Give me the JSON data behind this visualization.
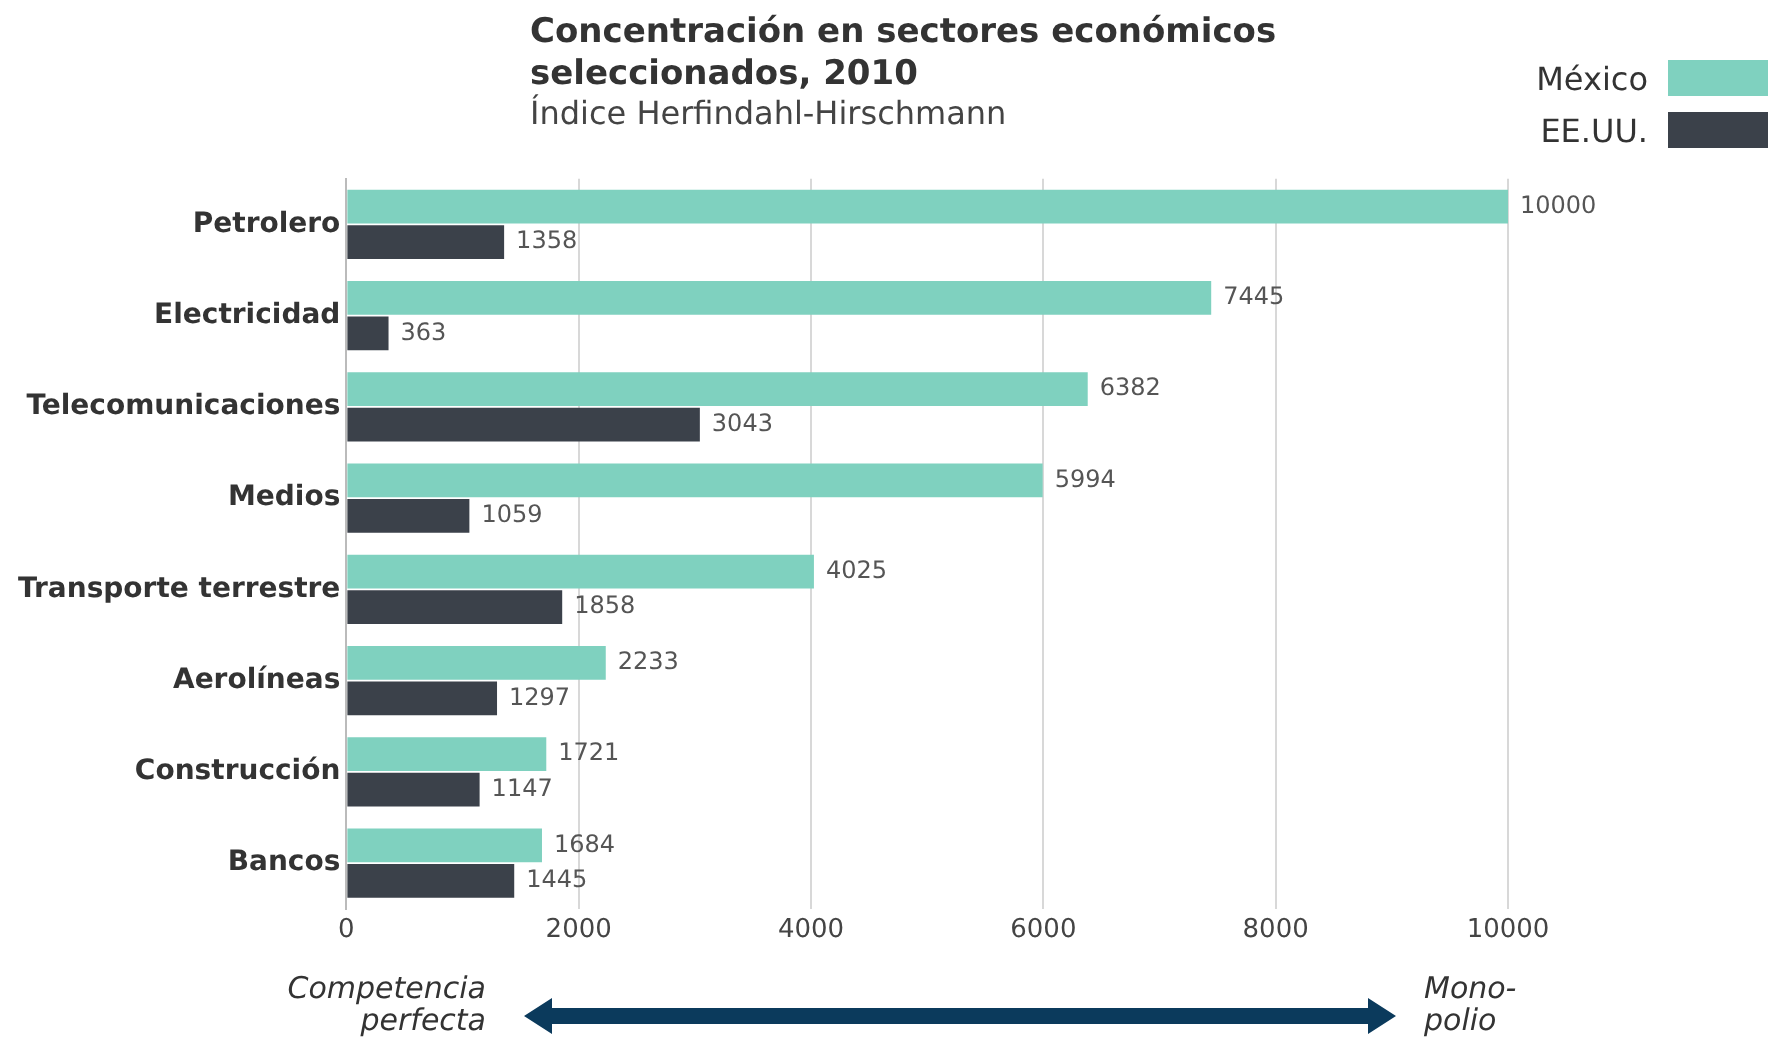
{
  "chart_data": {
    "type": "bar",
    "orientation": "horizontal",
    "title": "Concentración  en sectores económicos\nseleccionados, 2010",
    "subtitle": "Índice Herfindahl-Hirschmann",
    "categories": [
      "Petrolero",
      "Electricidad",
      "Telecomunicaciones",
      "Medios",
      "Transporte terrestre",
      "Aerolíneas",
      "Construcción",
      "Bancos"
    ],
    "series": [
      {
        "name": "México",
        "color": "#7fd1bf",
        "values": [
          10000,
          7445,
          6382,
          5994,
          4025,
          2233,
          1721,
          1684
        ]
      },
      {
        "name": "EE.UU.",
        "color": "#3b414a",
        "values": [
          1358,
          363,
          3043,
          1059,
          1858,
          1297,
          1147,
          1445
        ]
      }
    ],
    "xlim": [
      0,
      10000
    ],
    "xticks": [
      0,
      2000,
      4000,
      6000,
      8000,
      10000
    ],
    "grid": "x",
    "legend": "top right",
    "data_labels": true,
    "annotations": [
      "Competencia\nperfecta",
      "Mono-\npolio"
    ]
  }
}
